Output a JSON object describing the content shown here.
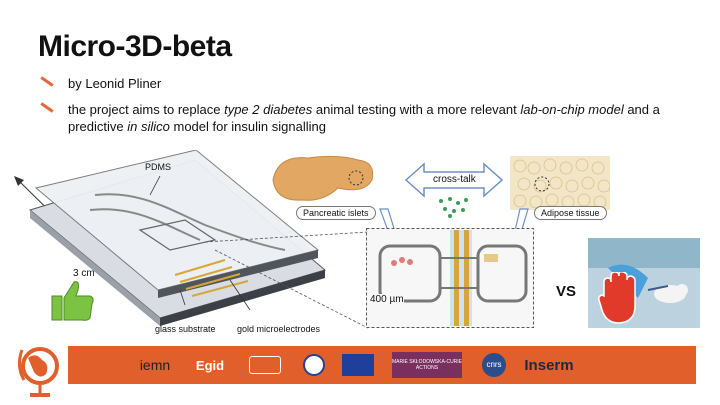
{
  "title": "Micro-3D-beta",
  "bullets": {
    "author": "by Leonid Pliner",
    "aim_part1": "the project aims to replace ",
    "aim_em1": "type 2 diabetes",
    "aim_part2": " animal testing with a more relevant ",
    "aim_em2": "lab-on-chip model",
    "aim_part3": " and a predictive ",
    "aim_em3": "in silico",
    "aim_part4": " model for insulin signalling"
  },
  "chip_labels": {
    "pdms": "PDMS",
    "size": "3 cm",
    "glass": "glass substrate",
    "gold": "gold microelectrodes"
  },
  "bio": {
    "crosstalk": "cross-talk",
    "islets": "Pancreatic islets",
    "adipose": "Adipose tissue",
    "scale": "400 µm"
  },
  "vs": "VS",
  "logos": {
    "iemn": "iemn",
    "egid": "Egid",
    "msca": "MARIE SKŁODOWSKA-CURIE ACTIONS",
    "cnrs": "cnrs",
    "inserm": "Inserm"
  },
  "colors": {
    "accent": "#e05f2a",
    "thumb": "#7cc243",
    "hand": "#e23a2a"
  }
}
